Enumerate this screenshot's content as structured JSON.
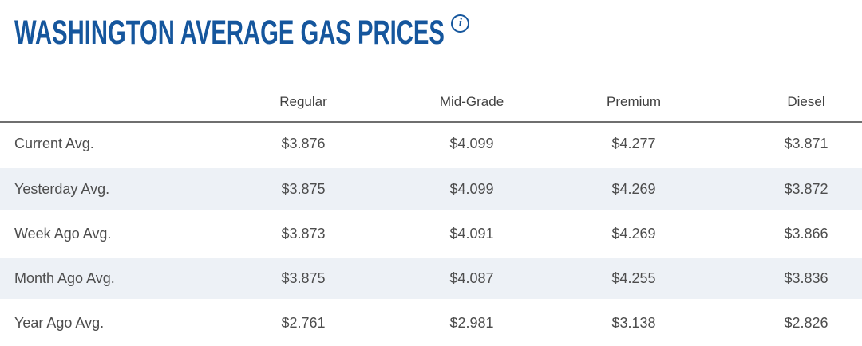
{
  "page": {
    "title": "WASHINGTON AVERAGE GAS PRICES",
    "info_icon_glyph": "i",
    "accent_color": "#15569d"
  },
  "table": {
    "corner_label": "",
    "columns": [
      "Regular",
      "Mid-Grade",
      "Premium",
      "Diesel"
    ],
    "rows": [
      {
        "label": "Current Avg.",
        "values": [
          "$3.876",
          "$4.099",
          "$4.277",
          "$3.871"
        ]
      },
      {
        "label": "Yesterday Avg.",
        "values": [
          "$3.875",
          "$4.099",
          "$4.269",
          "$3.872"
        ]
      },
      {
        "label": "Week Ago Avg.",
        "values": [
          "$3.873",
          "$4.091",
          "$4.269",
          "$3.866"
        ]
      },
      {
        "label": "Month Ago Avg.",
        "values": [
          "$3.875",
          "$4.087",
          "$4.255",
          "$3.836"
        ]
      },
      {
        "label": "Year Ago Avg.",
        "values": [
          "$2.761",
          "$2.981",
          "$3.138",
          "$2.826"
        ]
      }
    ],
    "striped_row_indexes": [
      1,
      3
    ],
    "colors": {
      "stripe_background": "#edf1f6",
      "header_rule": "#6f6f6f",
      "text": "#4d4d4d"
    }
  }
}
